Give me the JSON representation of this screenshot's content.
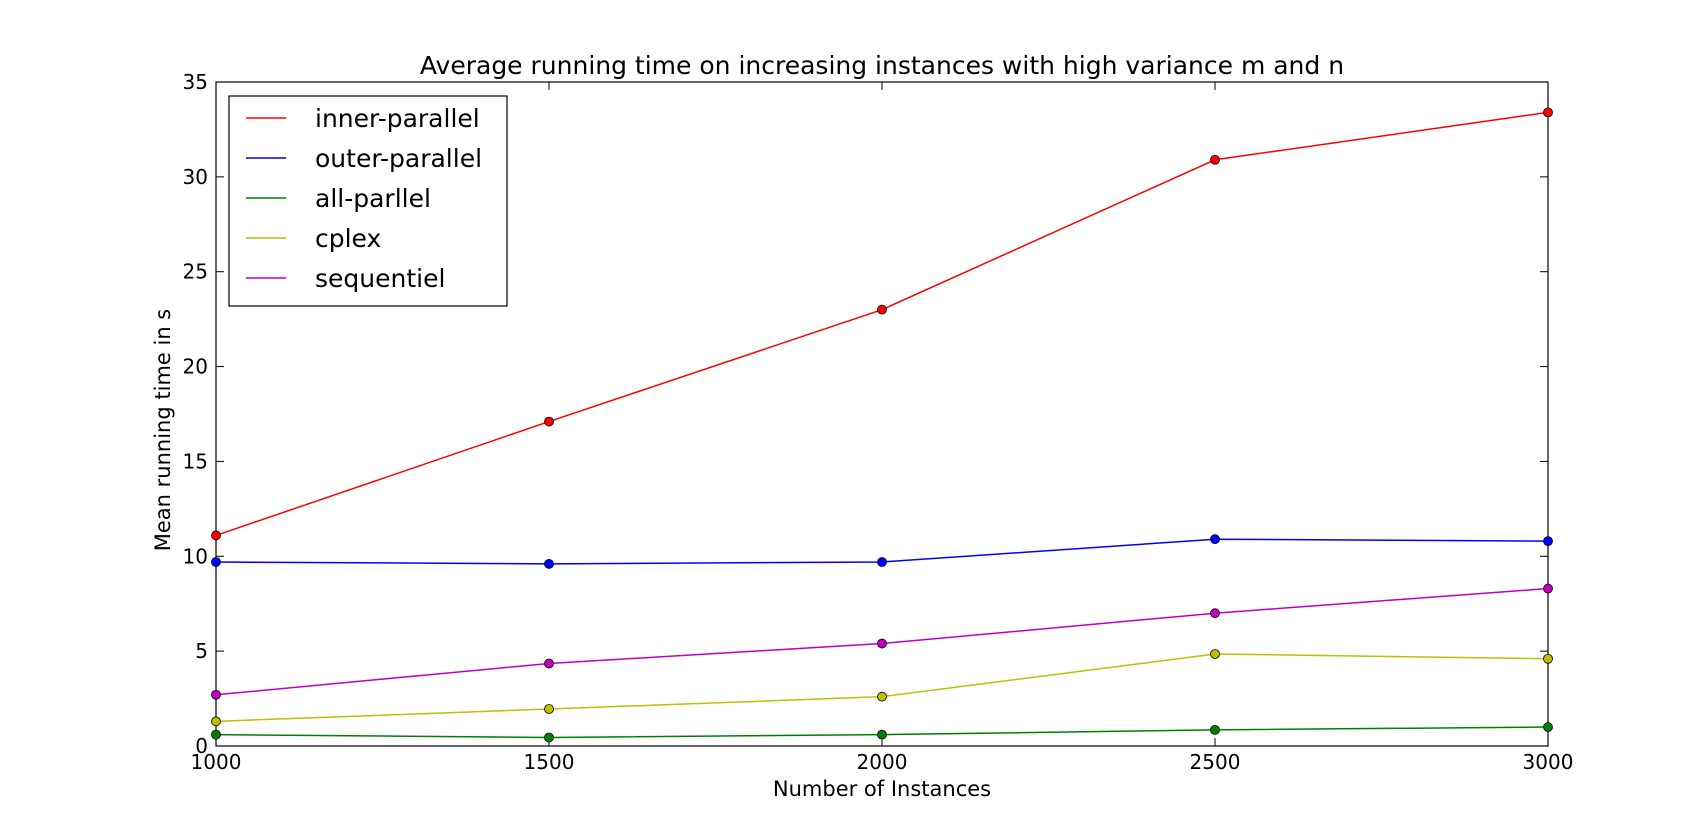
{
  "chart_data": {
    "type": "line",
    "title": "Average running time on increasing instances with high variance m and n",
    "xlabel": "Number of Instances",
    "ylabel": "Mean running time in s",
    "x": [
      1000,
      1500,
      2000,
      2500,
      3000
    ],
    "xlim": [
      1000,
      3000
    ],
    "ylim": [
      0,
      35
    ],
    "x_ticks": [
      "1000",
      "1500",
      "2000",
      "2500",
      "3000"
    ],
    "y_ticks": [
      "0",
      "5",
      "10",
      "15",
      "20",
      "25",
      "30",
      "35"
    ],
    "grid": false,
    "legend_position": "top-left",
    "series": [
      {
        "name": "inner-parallel",
        "color": "#ff0000",
        "values": [
          11.1,
          17.1,
          23.0,
          30.9,
          33.4
        ]
      },
      {
        "name": "outer-parallel",
        "color": "#0000ff",
        "values": [
          9.7,
          9.6,
          9.7,
          10.9,
          10.8
        ]
      },
      {
        "name": "all-parllel",
        "color": "#008000",
        "values": [
          0.6,
          0.45,
          0.6,
          0.85,
          1.0
        ]
      },
      {
        "name": "cplex",
        "color": "#bfbf00",
        "values": [
          1.3,
          1.95,
          2.6,
          4.85,
          4.6
        ]
      },
      {
        "name": "sequentiel",
        "color": "#bf00bf",
        "values": [
          2.7,
          4.35,
          5.4,
          7.0,
          8.3
        ]
      }
    ]
  }
}
